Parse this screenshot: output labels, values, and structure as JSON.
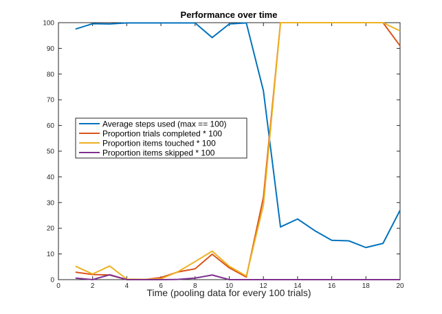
{
  "chart_data": {
    "type": "line",
    "title": "Performance over time",
    "xlabel": "Time (pooling data for every 100 trials)",
    "ylabel": "",
    "xlim": [
      0,
      20
    ],
    "ylim": [
      0,
      100
    ],
    "xticks": [
      0,
      2,
      4,
      6,
      8,
      10,
      12,
      14,
      16,
      18,
      20
    ],
    "yticks": [
      0,
      10,
      20,
      30,
      40,
      50,
      60,
      70,
      80,
      90,
      100
    ],
    "grid": false,
    "legend_position": "center-left",
    "x": [
      1,
      2,
      3,
      4,
      5,
      6,
      7,
      8,
      9,
      10,
      11,
      12,
      13,
      14,
      15,
      16,
      17,
      18,
      19,
      20
    ],
    "series": [
      {
        "name": "Average steps used (max == 100)",
        "color": "#0072bd",
        "values": [
          97.5,
          99.6,
          99.5,
          99.9,
          99.9,
          99.9,
          99.9,
          99.9,
          94.2,
          99.5,
          99.9,
          73.5,
          20.5,
          23.6,
          19.1,
          15.3,
          15.1,
          12.5,
          14.1,
          27.0
        ]
      },
      {
        "name": "Proportion trials completed * 100",
        "color": "#d95319",
        "values": [
          2.9,
          2.0,
          1.8,
          0,
          0,
          0.8,
          3.0,
          4.2,
          9.9,
          4.6,
          1.0,
          32.0,
          100,
          100,
          100,
          100,
          100,
          100,
          100,
          91.0
        ]
      },
      {
        "name": "Proportion items touched * 100",
        "color": "#edb120",
        "values": [
          5.2,
          2.2,
          5.3,
          0.2,
          0.1,
          0.3,
          3.1,
          7.0,
          11.1,
          5.2,
          1.4,
          29.0,
          100,
          100,
          100,
          100,
          100,
          100,
          100,
          96.8
        ]
      },
      {
        "name": "Proportion items skipped * 100",
        "color": "#7e2f8e",
        "values": [
          0.6,
          0,
          1.9,
          0,
          0,
          0,
          0.1,
          0.6,
          1.8,
          0,
          0,
          0,
          0,
          0,
          0,
          0,
          0,
          0,
          0,
          0
        ]
      }
    ]
  }
}
